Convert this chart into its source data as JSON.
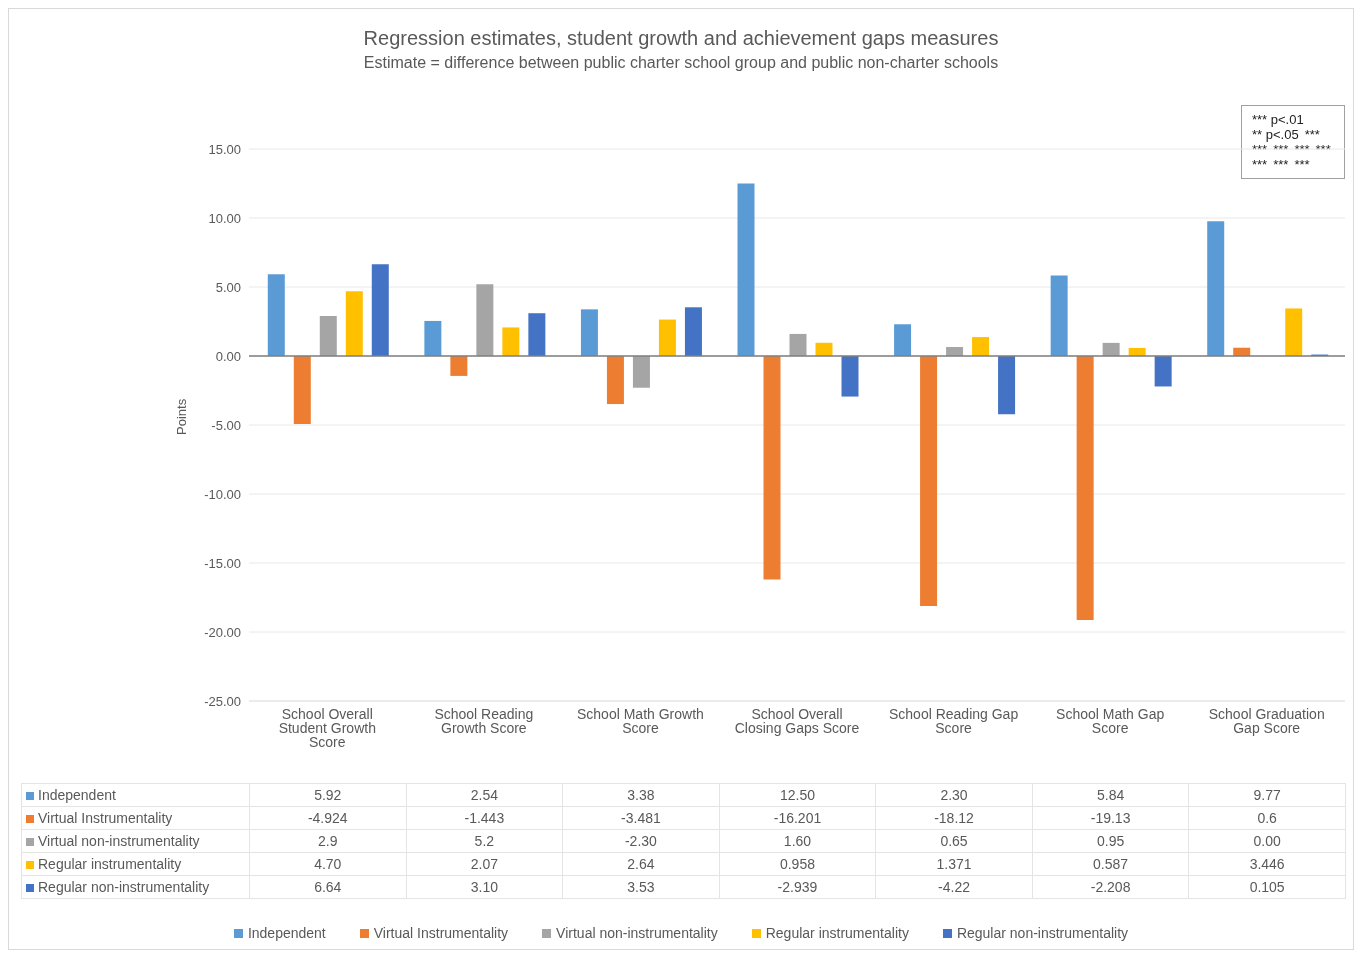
{
  "chart_data": {
    "type": "bar",
    "title": "Regression estimates, student growth and achievement gaps measures",
    "subtitle": "Estimate = difference between public charter school group and public non-charter schools",
    "ylabel": "Points",
    "categories": [
      "School Overall Student Growth Score",
      "School Reading Growth Score",
      "School Math Growth Score",
      "School Overall Closing Gaps Score",
      "School Reading Gap Score",
      "School Math Gap Score",
      "School Graduation Gap Score"
    ],
    "series": [
      {
        "name": "Independent",
        "color": "#5b9bd5",
        "values": [
          5.92,
          2.54,
          3.38,
          12.5,
          2.3,
          5.84,
          9.77
        ],
        "value_labels": [
          "5.92",
          "2.54",
          "3.38",
          "12.50",
          "2.30",
          "5.84",
          "9.77"
        ]
      },
      {
        "name": "Virtual Instrumentality",
        "color": "#ed7d31",
        "values": [
          -4.924,
          -1.443,
          -3.481,
          -16.201,
          -18.12,
          -19.13,
          0.6
        ],
        "value_labels": [
          "-4.924",
          "-1.443",
          "-3.481",
          "-16.201",
          "-18.12",
          "-19.13",
          "0.6"
        ]
      },
      {
        "name": "Virtual non-instrumentality",
        "color": "#a5a5a5",
        "values": [
          2.9,
          5.2,
          -2.3,
          1.6,
          0.65,
          0.95,
          0
        ],
        "value_labels": [
          "2.9",
          "5.2",
          "-2.30",
          "1.60",
          "0.65",
          "0.95",
          "0.00"
        ]
      },
      {
        "name": "Regular instrumentality",
        "color": "#ffc000",
        "values": [
          4.7,
          2.07,
          2.64,
          0.958,
          1.371,
          0.587,
          3.446
        ],
        "value_labels": [
          "4.70",
          "2.07",
          "2.64",
          "0.958",
          "1.371",
          "0.587",
          "3.446"
        ]
      },
      {
        "name": "Regular non-instrumentality",
        "color": "#4472c4",
        "values": [
          6.64,
          3.1,
          3.53,
          -2.939,
          -4.22,
          -2.208,
          0.105
        ],
        "value_labels": [
          "6.64",
          "3.10",
          "3.53",
          "-2.939",
          "-4.22",
          "-2.208",
          "0.105"
        ]
      }
    ],
    "ylim": [
      -25,
      15
    ],
    "yticks": [
      {
        "value": -25,
        "label": "-25.00"
      },
      {
        "value": -20,
        "label": "-20.00"
      },
      {
        "value": -15,
        "label": "-15.00"
      },
      {
        "value": -10,
        "label": "-10.00"
      },
      {
        "value": -5,
        "label": "-5.00"
      },
      {
        "value": 0,
        "label": "0.00"
      },
      {
        "value": 5,
        "label": "5.00"
      },
      {
        "value": 10,
        "label": "10.00"
      },
      {
        "value": 15,
        "label": "15.00"
      }
    ],
    "grid": "y",
    "legend": "bottom",
    "annotations": [
      "*** p<.01",
      "** p<.05",
      "***",
      "***",
      "***",
      "***",
      "***",
      "***",
      "***",
      "***"
    ]
  }
}
